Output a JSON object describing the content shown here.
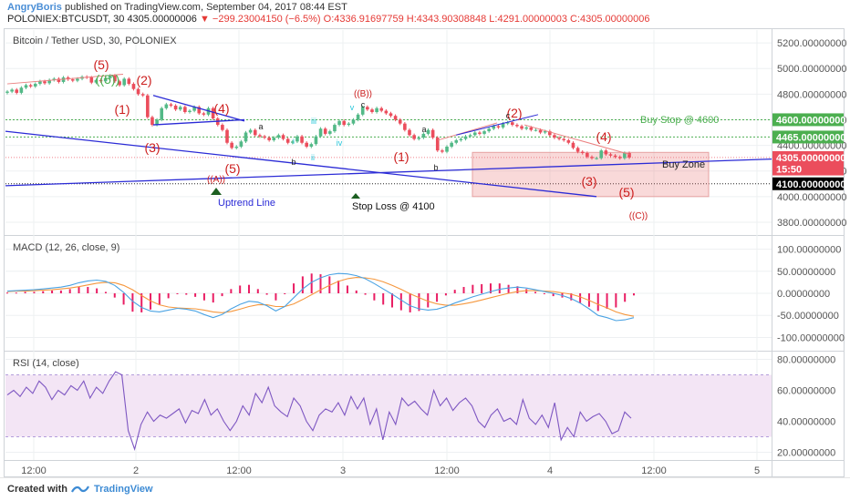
{
  "header": {
    "author": "AngryBoris",
    "published": "published on TradingView.com, September 04, 2017 08:44 EST",
    "symbol_line": "POLONIEX:BTCUSDT, 30",
    "price": "4305.00000006",
    "change_arrow": "▼",
    "change": "−299.23004150 (−6.5%)",
    "ohlc": "O:4336.91697759 H:4343.90308848 L:4291.00000003 C:4305.00000006"
  },
  "footer": {
    "created_with": "Created with",
    "brand": "TradingView"
  },
  "colors": {
    "up": "#53b987",
    "down": "#eb4d5c",
    "wave": "#cc1e1e",
    "trend": "#2b2bd6",
    "green_line": "#4caf50",
    "macd": "#4ba3e3",
    "signal": "#f5973d",
    "hist": "#e91e63",
    "rsi": "#7e57c2",
    "rsi_band": "#f3e5f5"
  },
  "chart_data": [
    {
      "type": "candlestick",
      "title": "Bitcoin / Tether USD, 30, POLONIEX",
      "ylim": [
        3700,
        5300
      ],
      "y_ticks": [
        "5200.00000000",
        "5000.00000000",
        "4800.00000000",
        "4600.00000000",
        "4400.00000000",
        "4200.00000000",
        "4000.00000000",
        "3800.00000000"
      ],
      "y_tick_values": [
        5200,
        5000,
        4800,
        4600,
        4400,
        4200,
        4000,
        3800
      ],
      "price_tags": [
        {
          "text": "4600.00000000",
          "value": 4600,
          "color": "#4caf50"
        },
        {
          "text": "4465.00000000",
          "value": 4465,
          "color": "#4caf50"
        },
        {
          "text": "4305.00000000",
          "value": 4305,
          "color": "#eb4d5c"
        },
        {
          "text": "15:50",
          "value": 4215,
          "color": "#eb4d5c"
        },
        {
          "text": "4100.00000000",
          "value": 4100,
          "color": "#000000"
        }
      ],
      "x_ticks": [
        "12:00",
        "2",
        "12:00",
        "3",
        "12:00",
        "4",
        "12:00",
        "5"
      ],
      "close": [
        4820,
        4835,
        4810,
        4850,
        4870,
        4860,
        4880,
        4900,
        4885,
        4910,
        4920,
        4895,
        4930,
        4915,
        4905,
        4920,
        4935,
        4930,
        4890,
        4910,
        4900,
        4925,
        4945,
        4900,
        4870,
        4920,
        4880,
        4840,
        4800,
        4790,
        4620,
        4560,
        4600,
        4690,
        4720,
        4710,
        4680,
        4700,
        4660,
        4670,
        4700,
        4650,
        4640,
        4690,
        4610,
        4560,
        4520,
        4420,
        4380,
        4390,
        4430,
        4500,
        4520,
        4480,
        4470,
        4460,
        4440,
        4460,
        4480,
        4450,
        4420,
        4430,
        4470,
        4420,
        4390,
        4410,
        4470,
        4530,
        4490,
        4510,
        4560,
        4590,
        4560,
        4570,
        4600,
        4640,
        4700,
        4680,
        4660,
        4690,
        4670,
        4650,
        4630,
        4600,
        4570,
        4520,
        4480,
        4450,
        4460,
        4490,
        4520,
        4460,
        4360,
        4350,
        4390,
        4420,
        4440,
        4450,
        4470,
        4480,
        4500,
        4490,
        4510,
        4530,
        4550,
        4540,
        4570,
        4580,
        4560,
        4550,
        4530,
        4540,
        4520,
        4520,
        4500,
        4510,
        4480,
        4460,
        4450,
        4440,
        4420,
        4380,
        4350,
        4340,
        4310,
        4300,
        4300,
        4360,
        4330,
        4320,
        4310,
        4300,
        4340,
        4305
      ],
      "wave_labels": [
        "(5)",
        "((5))",
        "(2)",
        "(1)",
        "(4)",
        "(3)",
        "(5)",
        "((A))",
        "((B))",
        "(1)",
        "(2)",
        "(4)",
        "(3)",
        "(5)",
        "((C))"
      ],
      "minor_labels": [
        "a",
        "b",
        "c",
        "a",
        "b",
        "c",
        "iii",
        "iv",
        "v",
        "i",
        "ii"
      ],
      "annotations": {
        "uptrend": "Uptrend Line",
        "stop_loss": "Stop Loss @ 4100",
        "buy_stop": "Buy Stop @ 4600",
        "buy_zone": "Buy Zone"
      }
    },
    {
      "type": "line",
      "title": "MACD (12, 26, close, 9)",
      "ylim": [
        -130,
        130
      ],
      "y_ticks": [
        "100.00000000",
        "50.00000000",
        "0.00000000",
        "-50.00000000",
        "-100.00000000"
      ],
      "y_tick_values": [
        100,
        50,
        0,
        -50,
        -100
      ],
      "series": [
        {
          "name": "MACD",
          "values": [
            5,
            6,
            7,
            8,
            10,
            12,
            14,
            18,
            24,
            28,
            30,
            27,
            18,
            2,
            -18,
            -32,
            -40,
            -42,
            -38,
            -34,
            -36,
            -40,
            -48,
            -55,
            -48,
            -35,
            -25,
            -18,
            -20,
            -28,
            -40,
            -30,
            -10,
            10,
            25,
            35,
            42,
            45,
            44,
            40,
            33,
            22,
            10,
            -2,
            -15,
            -28,
            -35,
            -38,
            -36,
            -30,
            -22,
            -15,
            -8,
            -2,
            4,
            9,
            12,
            14,
            12,
            8,
            4,
            0,
            -5,
            -12,
            -22,
            -35,
            -50,
            -55,
            -62,
            -60,
            -55
          ]
        },
        {
          "name": "Signal",
          "values": [
            4,
            5,
            5,
            6,
            7,
            8,
            10,
            12,
            15,
            19,
            23,
            25,
            24,
            18,
            8,
            -5,
            -17,
            -26,
            -31,
            -33,
            -34,
            -35,
            -38,
            -42,
            -44,
            -41,
            -36,
            -30,
            -26,
            -26,
            -30,
            -30,
            -24,
            -14,
            -3,
            8,
            18,
            27,
            33,
            36,
            35,
            32,
            26,
            18,
            9,
            -1,
            -10,
            -18,
            -24,
            -27,
            -27,
            -24,
            -20,
            -15,
            -10,
            -5,
            0,
            4,
            6,
            6,
            5,
            4,
            1,
            -2,
            -8,
            -16,
            -25,
            -33,
            -42,
            -48,
            -52
          ]
        }
      ]
    },
    {
      "type": "line",
      "title": "RSI (14, close)",
      "ylim": [
        15,
        85
      ],
      "y_ticks": [
        "80.00000000",
        "60.00000000",
        "40.00000000",
        "20.00000000"
      ],
      "y_tick_values": [
        80,
        60,
        40,
        20
      ],
      "band": [
        30,
        70
      ],
      "series": [
        {
          "name": "RSI",
          "values": [
            57,
            60,
            56,
            62,
            58,
            66,
            62,
            54,
            60,
            57,
            63,
            60,
            66,
            55,
            62,
            58,
            66,
            72,
            70,
            34,
            22,
            38,
            46,
            40,
            44,
            42,
            45,
            48,
            39,
            47,
            45,
            54,
            44,
            48,
            40,
            34,
            40,
            50,
            44,
            58,
            52,
            62,
            50,
            46,
            43,
            55,
            50,
            40,
            34,
            44,
            48,
            46,
            52,
            44,
            56,
            48,
            55,
            38,
            48,
            28,
            46,
            38,
            55,
            50,
            53,
            48,
            44,
            60,
            50,
            55,
            47,
            52,
            55,
            50,
            40,
            36,
            44,
            48,
            40,
            42,
            38,
            54,
            42,
            38,
            44,
            36,
            52,
            28,
            36,
            30,
            46,
            40,
            43,
            45,
            40,
            32,
            34,
            46,
            42
          ]
        }
      ]
    }
  ]
}
